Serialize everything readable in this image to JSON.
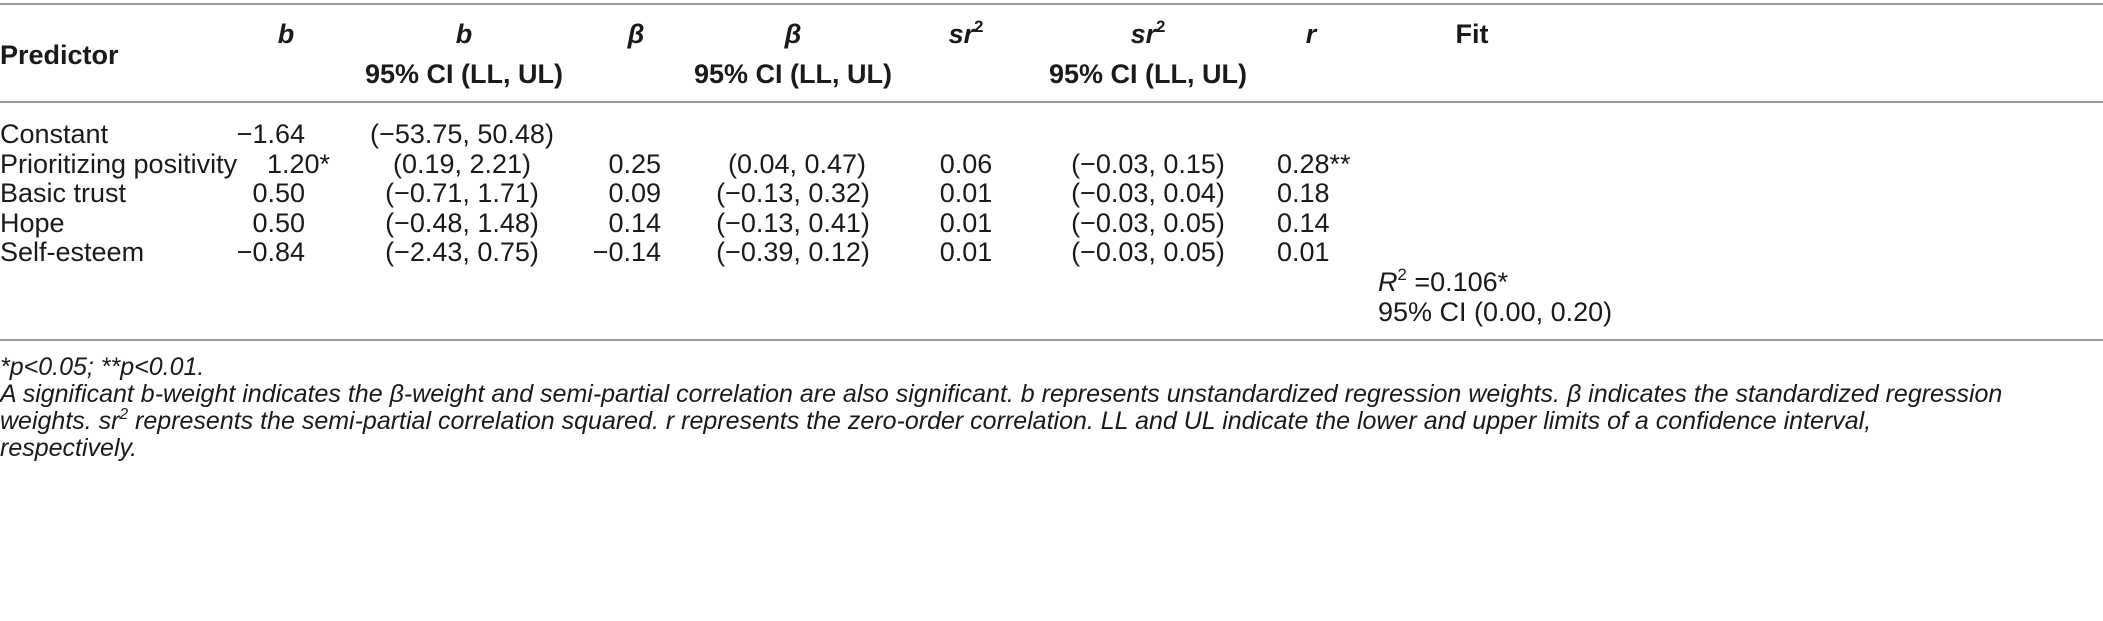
{
  "table": {
    "header": {
      "predictor": "Predictor",
      "b": "b",
      "b_ci_sym": "b",
      "b_ci": "95% CI (LL, UL)",
      "beta": "β",
      "beta_ci_sym": "β",
      "beta_ci": "95% CI (LL, UL)",
      "sr2": "sr",
      "sr2_sup": "2",
      "sr2_ci_sym": "sr",
      "sr2_ci_sup": "2",
      "sr2_ci": "95% CI (LL, UL)",
      "r": "r",
      "fit": "Fit"
    },
    "rows": [
      {
        "predictor": "Constant",
        "b": "−1.64",
        "b_ci": "(−53.75, 50.48)",
        "beta": "",
        "beta_ci": "",
        "sr2": "",
        "sr2_ci": "",
        "r": ""
      },
      {
        "predictor": "Prioritizing positivity",
        "b": "1.20*",
        "b_ci": "(0.19, 2.21)",
        "beta": "0.25",
        "beta_ci": "(0.04, 0.47)",
        "sr2": "0.06",
        "sr2_ci": "(−0.03, 0.15)",
        "r": "0.28**"
      },
      {
        "predictor": "Basic trust",
        "b": "0.50",
        "b_ci": "(−0.71, 1.71)",
        "beta": "0.09",
        "beta_ci": "(−0.13, 0.32)",
        "sr2": "0.01",
        "sr2_ci": "(−0.03, 0.04)",
        "r": "0.18"
      },
      {
        "predictor": "Hope",
        "b": "0.50",
        "b_ci": "(−0.48, 1.48)",
        "beta": "0.14",
        "beta_ci": "(−0.13, 0.41)",
        "sr2": "0.01",
        "sr2_ci": "(−0.03, 0.05)",
        "r": "0.14"
      },
      {
        "predictor": "Self-esteem",
        "b": "−0.84",
        "b_ci": "(−2.43, 0.75)",
        "beta": "−0.14",
        "beta_ci": "(−0.39, 0.12)",
        "sr2": "0.01",
        "sr2_ci": "(−0.03, 0.05)",
        "r": "0.01"
      }
    ],
    "fit": {
      "r2_sym": "R",
      "r2_sup": "2",
      "r2_value": " =0.106*",
      "ci": "95% CI (0.00, 0.20)"
    }
  },
  "footnotes": {
    "sig": "*p<0.05; **p<0.01.",
    "line1": "A significant b-weight indicates the β-weight and semi-partial correlation are also significant. b represents unstandardized regression weights. β indicates the standardized regression",
    "line2_pre": "weights. sr",
    "line2_sup": "2",
    "line2_post": " represents the semi-partial correlation squared. r represents the zero-order correlation. LL and UL indicate the lower and upper limits of a confidence interval,",
    "line3": "respectively."
  }
}
